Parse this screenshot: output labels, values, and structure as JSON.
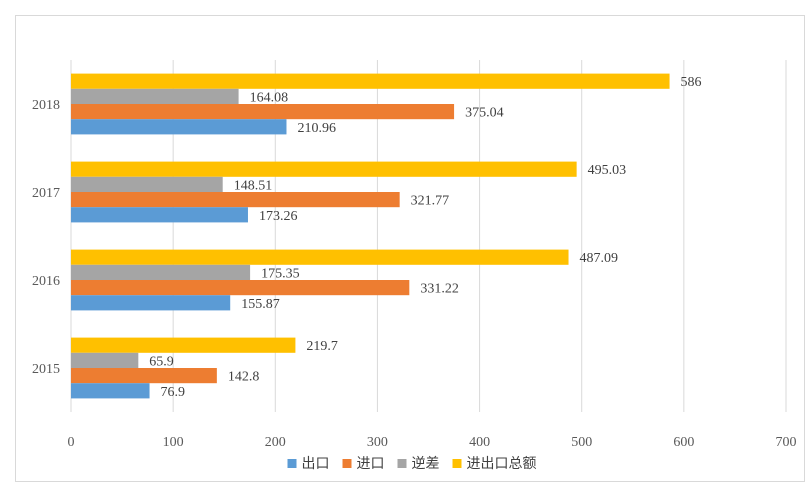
{
  "chart_data": {
    "type": "bar",
    "orientation": "horizontal",
    "categories": [
      "2018",
      "2017",
      "2016",
      "2015"
    ],
    "series": [
      {
        "name": "进出口总额",
        "color": "#ffc000",
        "values": [
          586,
          495.03,
          487.09,
          219.7
        ],
        "labels": [
          "586",
          "495.03",
          "487.09",
          "219.7"
        ]
      },
      {
        "name": "逆差",
        "color": "#a5a5a5",
        "values": [
          164.08,
          148.51,
          175.35,
          65.9
        ],
        "labels": [
          "164.08",
          "148.51",
          "175.35",
          "65.9"
        ]
      },
      {
        "name": "进口",
        "color": "#ed7d31",
        "values": [
          375.04,
          321.77,
          331.22,
          142.8
        ],
        "labels": [
          "375.04",
          "321.77",
          "331.22",
          "142.8"
        ]
      },
      {
        "name": "出口",
        "color": "#5b9bd5",
        "values": [
          210.96,
          173.26,
          155.87,
          76.9
        ],
        "labels": [
          "210.96",
          "173.26",
          "155.87",
          "76.9"
        ]
      }
    ],
    "xlim": [
      0,
      700
    ],
    "xticks": [
      "0",
      "100",
      "200",
      "300",
      "400",
      "500",
      "600",
      "700"
    ],
    "grid": true,
    "legend": "bottom",
    "gridline_color": "#d9d9d9"
  }
}
